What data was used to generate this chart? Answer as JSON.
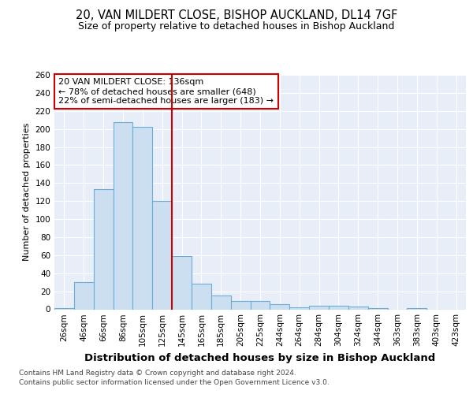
{
  "title1": "20, VAN MILDERT CLOSE, BISHOP AUCKLAND, DL14 7GF",
  "title2": "Size of property relative to detached houses in Bishop Auckland",
  "xlabel": "Distribution of detached houses by size in Bishop Auckland",
  "ylabel": "Number of detached properties",
  "categories": [
    "26sqm",
    "46sqm",
    "66sqm",
    "86sqm",
    "105sqm",
    "125sqm",
    "145sqm",
    "165sqm",
    "185sqm",
    "205sqm",
    "225sqm",
    "244sqm",
    "264sqm",
    "284sqm",
    "304sqm",
    "324sqm",
    "344sqm",
    "363sqm",
    "383sqm",
    "403sqm",
    "423sqm"
  ],
  "values": [
    1,
    30,
    133,
    208,
    202,
    120,
    59,
    28,
    15,
    9,
    9,
    6,
    2,
    4,
    4,
    3,
    1,
    0,
    1,
    0,
    0
  ],
  "bar_color": "#ccdff0",
  "bar_edge_color": "#6aaed6",
  "vline_x": 5.5,
  "vline_color": "#cc0000",
  "annotation_text": "20 VAN MILDERT CLOSE: 136sqm\n← 78% of detached houses are smaller (648)\n22% of semi-detached houses are larger (183) →",
  "annotation_box_color": "#cc0000",
  "footer1": "Contains HM Land Registry data © Crown copyright and database right 2024.",
  "footer2": "Contains public sector information licensed under the Open Government Licence v3.0.",
  "plot_bg_color": "#e8eef8",
  "ylim": [
    0,
    260
  ],
  "yticks": [
    0,
    20,
    40,
    60,
    80,
    100,
    120,
    140,
    160,
    180,
    200,
    220,
    240,
    260
  ],
  "title1_fontsize": 10.5,
  "title2_fontsize": 9,
  "xlabel_fontsize": 9.5,
  "ylabel_fontsize": 8,
  "tick_fontsize": 7.5,
  "annotation_fontsize": 8,
  "footer_fontsize": 6.5
}
